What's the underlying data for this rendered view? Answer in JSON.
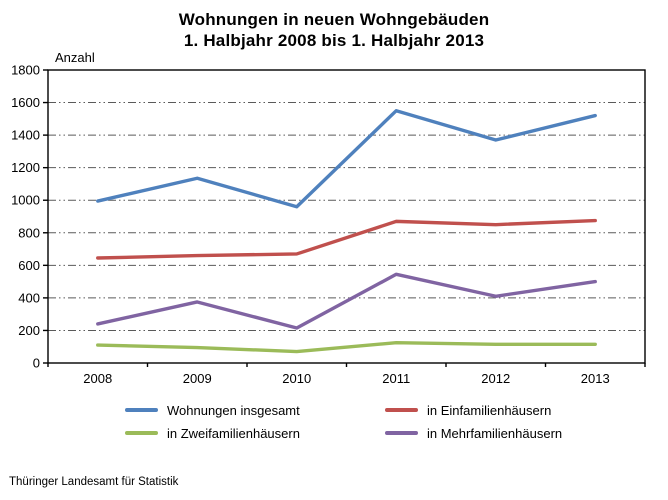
{
  "title": {
    "line1": "Wohnungen in neuen Wohngebäuden",
    "line2": "1. Halbjahr 2008 bis 1. Halbjahr 2013"
  },
  "footer": "Thüringer Landesamt für Statistik",
  "chart_data": {
    "type": "line",
    "title": "Wohnungen in neuen Wohngebäuden — 1. Halbjahr 2008 bis 1. Halbjahr 2013",
    "xlabel": "",
    "ylabel": "Anzahl",
    "categories": [
      "2008",
      "2009",
      "2010",
      "2011",
      "2012",
      "2013"
    ],
    "ylim": [
      0,
      1800
    ],
    "ytick_step": 200,
    "grid": true,
    "grid_style": "dash-dot",
    "legend_position": "bottom",
    "series": [
      {
        "name": "Wohnungen insgesamt",
        "color": "#4F81BD",
        "values": [
          995,
          1135,
          960,
          1550,
          1370,
          1520
        ]
      },
      {
        "name": "in Einfamilienhäusern",
        "color": "#C0504D",
        "values": [
          645,
          660,
          670,
          870,
          850,
          875
        ]
      },
      {
        "name": "in Zweifamilienhäusern",
        "color": "#9BBB59",
        "values": [
          110,
          95,
          70,
          125,
          115,
          115
        ]
      },
      {
        "name": "in Mehrfamilienhäusern",
        "color": "#8064A2",
        "values": [
          240,
          375,
          215,
          545,
          410,
          500
        ]
      }
    ]
  }
}
